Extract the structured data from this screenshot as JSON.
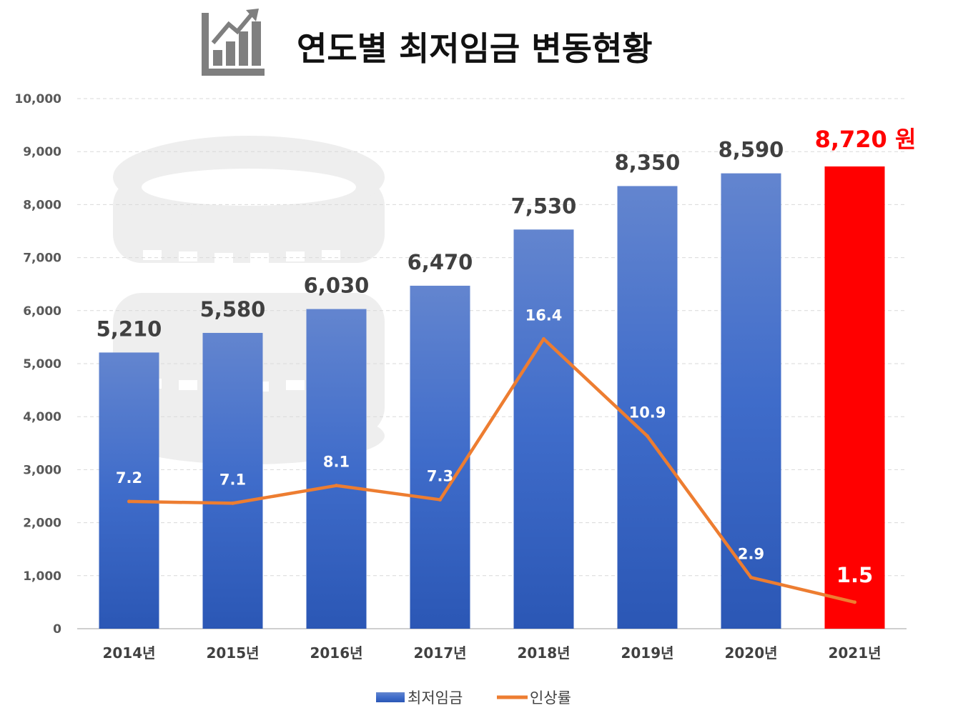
{
  "chart_data": {
    "type": "bar",
    "title": "연도별 최저임금 변동현황",
    "categories": [
      "2014년",
      "2015년",
      "2016년",
      "2017년",
      "2018년",
      "2019년",
      "2020년",
      "2021년"
    ],
    "series": [
      {
        "name": "최저임금",
        "type": "bar",
        "values": [
          5210,
          5580,
          6030,
          6470,
          7530,
          8350,
          8590,
          8720
        ],
        "labels": [
          "5,210",
          "5,580",
          "6,030",
          "6,470",
          "7,530",
          "8,350",
          "8,590",
          "8,720 원"
        ],
        "color": "#3a66c4",
        "highlight_color": "#ff0000",
        "highlight_index": 7
      },
      {
        "name": "인상률",
        "type": "line",
        "values": [
          7.2,
          7.1,
          8.1,
          7.3,
          16.4,
          10.9,
          2.9,
          1.5
        ],
        "labels": [
          "7.2",
          "7.1",
          "8.1",
          "7.3",
          "16.4",
          "10.9",
          "2.9",
          "1.5"
        ],
        "color": "#ed7d31",
        "secondary_axis_range": [
          0,
          30
        ]
      }
    ],
    "ylim": [
      0,
      10000
    ],
    "yticks": [
      0,
      1000,
      2000,
      3000,
      4000,
      5000,
      6000,
      7000,
      8000,
      9000,
      10000
    ],
    "ytick_labels": [
      "0",
      "1,000",
      "2,000",
      "3,000",
      "4,000",
      "5,000",
      "6,000",
      "7,000",
      "8,000",
      "9,000",
      "10,000"
    ],
    "grid": true,
    "legend_position": "bottom",
    "xlabel": "",
    "ylabel": ""
  },
  "icons": {
    "title": "bar-chart-growth-icon",
    "background": "coin-stack-icon"
  }
}
